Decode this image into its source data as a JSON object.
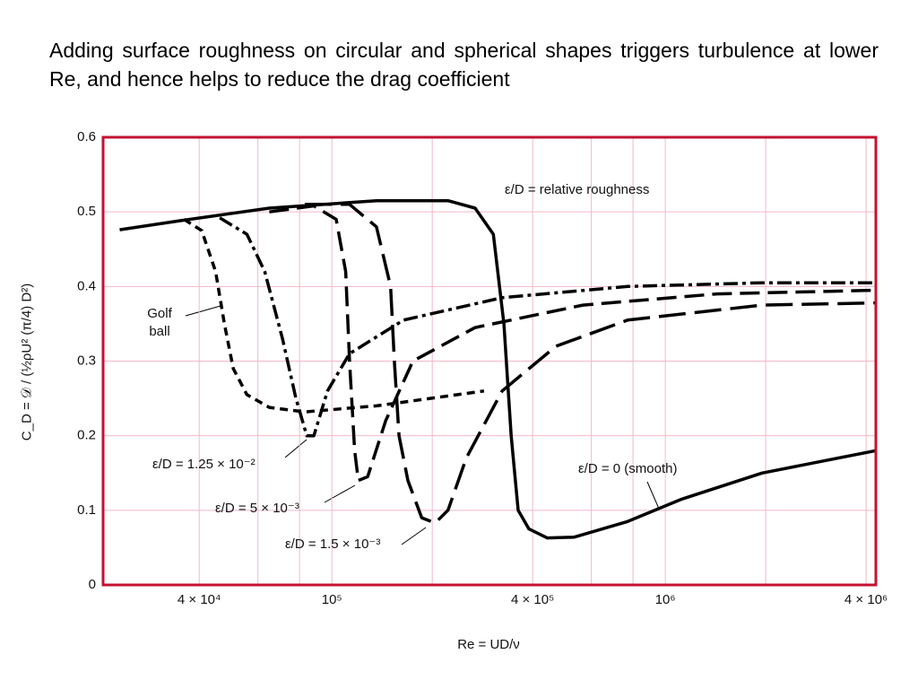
{
  "chart_data": {
    "type": "line",
    "title": "Adding surface roughness on circular and spherical shapes triggers turbulence at lower Re, and hence helps to reduce the drag coefficient",
    "x_label": "Re = UD/ν",
    "y_label": "C_D = 𝒟 / (½ρU² (π/4) D²)",
    "log_x": true,
    "grid": true,
    "frame_color": "#c41230",
    "grid_color": "#f2b8c6",
    "xlim": [
      20600,
      4280000
    ],
    "ylim": [
      0,
      0.6
    ],
    "xticks": [
      {
        "value": 40000,
        "label": "4 × 10⁴"
      },
      {
        "value": 100000,
        "label": "10⁵"
      },
      {
        "value": 400000,
        "label": "4 × 10⁵"
      },
      {
        "value": 1000000,
        "label": "10⁶"
      },
      {
        "value": 4000000,
        "label": "4 × 10⁶"
      }
    ],
    "xminor": [
      60000,
      80000,
      200000,
      600000,
      800000,
      2000000
    ],
    "yticks": [
      0,
      0.1,
      0.2,
      0.3,
      0.4,
      0.5,
      0.6
    ],
    "series": [
      {
        "name": "ε/D = 0 (smooth)",
        "color": "#000000",
        "dash": "none",
        "x": [
          23100,
          34900,
          64900,
          136000,
          223000,
          269000,
          305000,
          328000,
          345000,
          362000,
          390000,
          442000,
          532000,
          771000,
          1120000,
          1950000,
          4280000
        ],
        "values": [
          0.476,
          0.488,
          0.505,
          0.515,
          0.515,
          0.505,
          0.47,
          0.35,
          0.2,
          0.1,
          0.075,
          0.063,
          0.064,
          0.085,
          0.115,
          0.15,
          0.18
        ]
      },
      {
        "name": "Golf ball",
        "color": "#000000",
        "dash": "9 6",
        "x": [
          36000,
          40700,
          44800,
          47600,
          50600,
          55600,
          64900,
          83000,
          136000,
          286000
        ],
        "values": [
          0.49,
          0.475,
          0.42,
          0.35,
          0.29,
          0.255,
          0.238,
          0.232,
          0.24,
          0.26
        ]
      },
      {
        "name": "ε/D = 1.25 × 10⁻²",
        "color": "#000000",
        "dash": "16 5 4 5",
        "x": [
          46100,
          55600,
          62900,
          71100,
          78000,
          84100,
          88300,
          97000,
          113000,
          164000,
          324000,
          771000,
          1950000,
          4280000
        ],
        "values": [
          0.492,
          0.47,
          0.42,
          0.33,
          0.25,
          0.2,
          0.2,
          0.26,
          0.31,
          0.355,
          0.385,
          0.4,
          0.405,
          0.405
        ]
      },
      {
        "name": "ε/D = 5 × 10⁻³",
        "color": "#000000",
        "dash": "22 9",
        "x": [
          64900,
          88300,
          103000,
          110000,
          113000,
          117000,
          120000,
          128000,
          145000,
          175000,
          269000,
          566000,
          1430000,
          4280000
        ],
        "values": [
          0.5,
          0.508,
          0.49,
          0.42,
          0.3,
          0.18,
          0.14,
          0.145,
          0.22,
          0.3,
          0.345,
          0.375,
          0.39,
          0.395
        ]
      },
      {
        "name": "ε/D = 1.5 × 10⁻³",
        "color": "#000000",
        "dash": "30 10",
        "x": [
          83000,
          113000,
          136000,
          150000,
          154000,
          159000,
          169000,
          186000,
          204000,
          223000,
          253000,
          324000,
          470000,
          771000,
          1950000,
          4280000
        ],
        "values": [
          0.51,
          0.51,
          0.48,
          0.4,
          0.3,
          0.2,
          0.14,
          0.09,
          0.083,
          0.1,
          0.17,
          0.26,
          0.32,
          0.355,
          0.375,
          0.378
        ]
      }
    ],
    "annotations": [
      "ε/D = relative roughness"
    ]
  }
}
